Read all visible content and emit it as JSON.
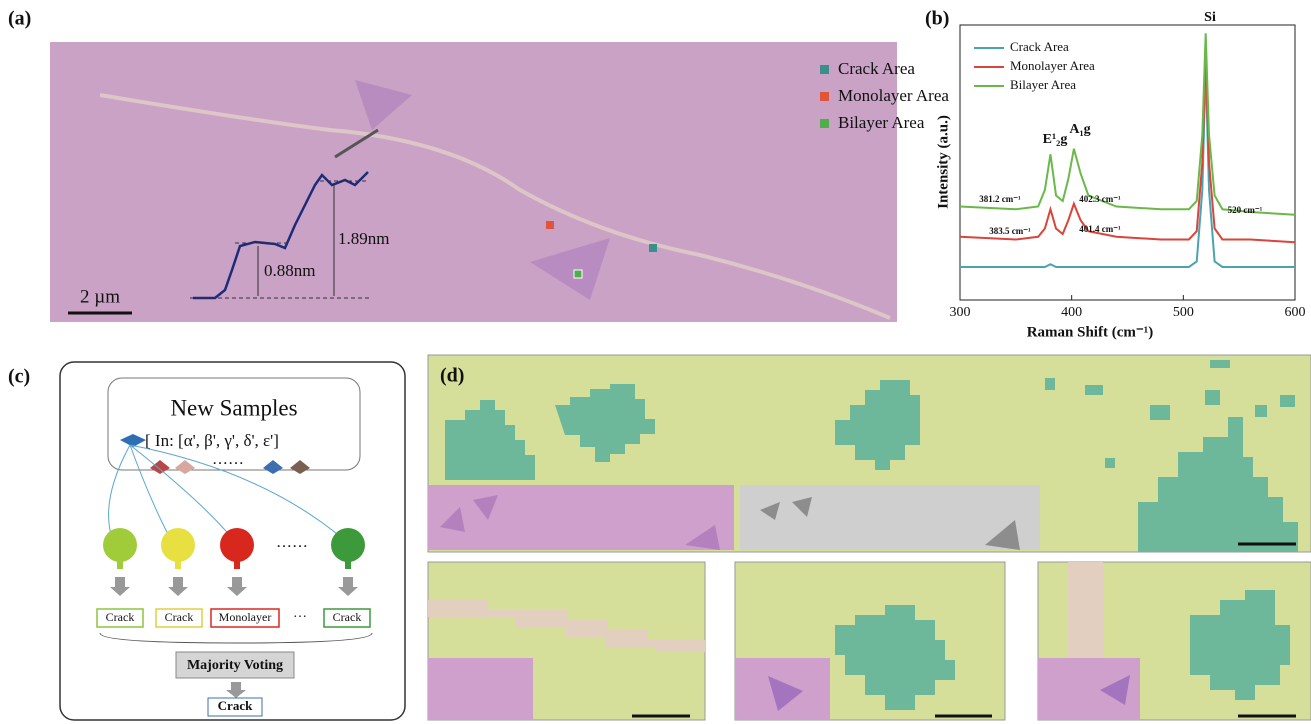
{
  "panel_a": {
    "label": "(a)",
    "legend": [
      "Crack Area",
      "Monolayer Area",
      "Bilayer Area"
    ],
    "annotations": [
      "1.89nm",
      "0.88nm"
    ],
    "scale_bar": "2 µm"
  },
  "chart_data": {
    "type": "line",
    "label": "(b)",
    "xlabel": "Raman Shift (cm⁻¹)",
    "ylabel": "Intensity (a.u.)",
    "xlim": [
      300,
      600
    ],
    "xticks": [
      300,
      400,
      500,
      600
    ],
    "ylim": [
      0,
      100
    ],
    "x": [
      300,
      350,
      370,
      376,
      381,
      386,
      392,
      397,
      402,
      408,
      415,
      440,
      480,
      505,
      512,
      517,
      520,
      523,
      528,
      535,
      560,
      600
    ],
    "series": [
      {
        "name": "Crack Area",
        "color": "#4aa3b0",
        "values": [
          12,
          12,
          12,
          12,
          13,
          12,
          12,
          12,
          12,
          12,
          12,
          12,
          12,
          12,
          14,
          40,
          85,
          40,
          14,
          12,
          12,
          12
        ]
      },
      {
        "name": "Monolayer Area",
        "color": "#d9453a",
        "values": [
          23,
          22,
          23,
          26,
          33,
          26,
          24,
          29,
          35,
          29,
          25,
          23,
          22,
          22,
          25,
          50,
          90,
          50,
          26,
          22,
          22,
          21
        ]
      },
      {
        "name": "Bilayer Area",
        "color": "#6ab84a",
        "values": [
          34,
          33,
          34,
          40,
          53,
          38,
          36,
          44,
          55,
          46,
          38,
          34,
          33,
          33,
          36,
          60,
          97,
          60,
          38,
          33,
          32,
          31
        ]
      }
    ],
    "annotations": [
      "E¹₂g",
      "A₁g",
      "Si",
      "381.2 cm⁻¹",
      "402.3 cm⁻¹",
      "383.5 cm⁻¹",
      "401.4 cm⁻¹",
      "520 cm⁻¹"
    ]
  },
  "panel_c": {
    "label": "(c)",
    "title": "New Samples",
    "input": "[ In: [α', β', γ', δ', ε']",
    "ellipsis": "······",
    "outputs": [
      "Crack",
      "Crack",
      "Monolayer",
      "···",
      "Crack"
    ],
    "voting": "Majority Voting",
    "result": "Crack"
  },
  "panel_d": {
    "label": "(d)"
  }
}
